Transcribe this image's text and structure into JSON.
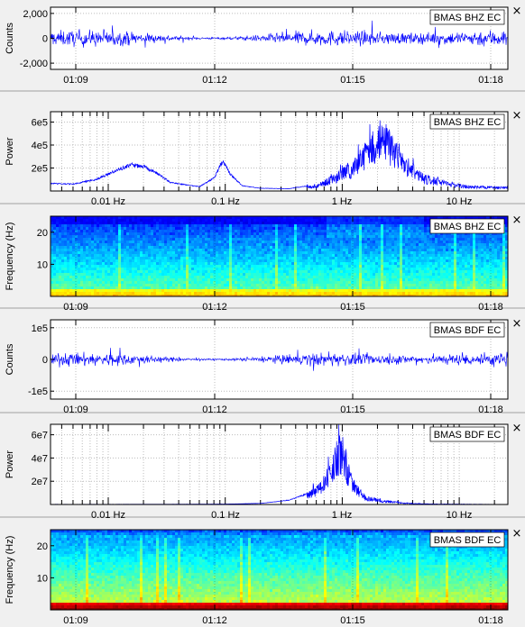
{
  "chart_data": [
    {
      "type": "line",
      "title": "BMAS BHZ EC",
      "ylabel": "Counts",
      "x_ticks": [
        "01:09",
        "01:12",
        "01:15",
        "01:18"
      ],
      "y_ticks": [
        {
          "value": 2000,
          "label": "2,000"
        },
        {
          "value": 0,
          "label": "0"
        },
        {
          "value": -2000,
          "label": "-2,000"
        }
      ],
      "ylim": [
        -2500,
        2500
      ],
      "grid": true,
      "series": [
        {
          "values": []
        }
      ]
    },
    {
      "type": "line",
      "title": "BMAS BHZ EC",
      "ylabel": "Power",
      "x_scale": "log",
      "x_ticks": [
        "0.01 Hz",
        "0.1 Hz",
        "1 Hz",
        "10 Hz"
      ],
      "y_ticks": [
        {
          "value": 600000,
          "label": "6e5"
        },
        {
          "value": 400000,
          "label": "4e5"
        },
        {
          "value": 200000,
          "label": "2e5"
        }
      ],
      "ylim": [
        0,
        690000
      ],
      "grid": true,
      "spectrum_envelope": [
        [
          0.0015,
          90000
        ],
        [
          0.003,
          72000
        ],
        [
          0.005,
          65000
        ],
        [
          0.008,
          110000
        ],
        [
          0.012,
          200000
        ],
        [
          0.016,
          245000
        ],
        [
          0.02,
          230000
        ],
        [
          0.026,
          170000
        ],
        [
          0.034,
          80000
        ],
        [
          0.045,
          60000
        ],
        [
          0.06,
          40000
        ],
        [
          0.08,
          120000
        ],
        [
          0.095,
          280000
        ],
        [
          0.11,
          160000
        ],
        [
          0.14,
          50000
        ],
        [
          0.2,
          25000
        ],
        [
          0.35,
          22000
        ],
        [
          0.6,
          60000
        ],
        [
          0.9,
          160000
        ],
        [
          1.3,
          300000
        ],
        [
          1.8,
          520000
        ],
        [
          2.3,
          620000
        ],
        [
          2.8,
          480000
        ],
        [
          3.6,
          300000
        ],
        [
          5,
          150000
        ],
        [
          8,
          80000
        ],
        [
          12,
          50000
        ],
        [
          20,
          40000
        ]
      ]
    },
    {
      "type": "heatmap",
      "title": "BMAS BHZ EC",
      "ylabel": "Frequency (Hz)",
      "x_ticks": [
        "01:09",
        "01:12",
        "01:15",
        "01:18"
      ],
      "y_ticks": [
        {
          "value": 20,
          "label": "20"
        },
        {
          "value": 10,
          "label": "10"
        }
      ],
      "ylim": [
        0,
        25
      ]
    },
    {
      "type": "line",
      "title": "BMAS BDF EC",
      "ylabel": "Counts",
      "x_ticks": [
        "01:09",
        "01:12",
        "01:15",
        "01:18"
      ],
      "y_ticks": [
        {
          "value": 100000,
          "label": "1e5"
        },
        {
          "value": 0,
          "label": "0"
        },
        {
          "value": -100000,
          "label": "-1e5"
        }
      ],
      "ylim": [
        -125000,
        125000
      ],
      "grid": true,
      "series": [
        {
          "values": []
        }
      ]
    },
    {
      "type": "line",
      "title": "BMAS BDF EC",
      "ylabel": "Power",
      "x_scale": "log",
      "x_ticks": [
        "0.01 Hz",
        "0.1 Hz",
        "1 Hz",
        "10 Hz"
      ],
      "y_ticks": [
        {
          "value": 60000000,
          "label": "6e7"
        },
        {
          "value": 40000000,
          "label": "4e7"
        },
        {
          "value": 20000000,
          "label": "2e7"
        }
      ],
      "ylim": [
        0,
        69000000
      ],
      "grid": true,
      "spectrum_envelope": [
        [
          0.0015,
          200000
        ],
        [
          0.01,
          200000
        ],
        [
          0.05,
          300000
        ],
        [
          0.1,
          400000
        ],
        [
          0.2,
          1000000
        ],
        [
          0.35,
          4000000
        ],
        [
          0.5,
          10000000
        ],
        [
          0.65,
          20000000
        ],
        [
          0.8,
          40000000
        ],
        [
          0.95,
          62000000
        ],
        [
          1.1,
          40000000
        ],
        [
          1.3,
          18000000
        ],
        [
          1.6,
          8000000
        ],
        [
          2.2,
          4000000
        ],
        [
          3.5,
          1500000
        ],
        [
          6,
          500000
        ],
        [
          20,
          200000
        ]
      ]
    },
    {
      "type": "heatmap",
      "title": "BMAS BDF EC",
      "ylabel": "Frequency (Hz)",
      "x_ticks": [
        "01:09",
        "01:12",
        "01:15",
        "01:18"
      ],
      "y_ticks": [
        {
          "value": 20,
          "label": "20"
        },
        {
          "value": 10,
          "label": "10"
        }
      ],
      "ylim": [
        0,
        25
      ]
    }
  ],
  "ui": {
    "close_glyph": "×",
    "line_color": "#0000ff",
    "grid_color": "#bcbcbc"
  }
}
